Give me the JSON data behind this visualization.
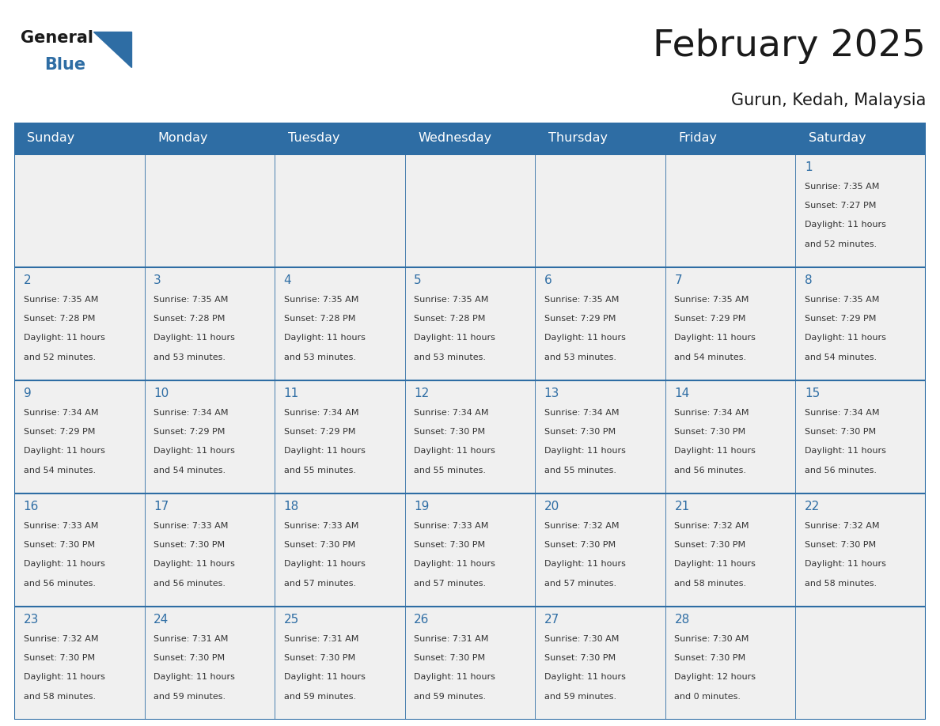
{
  "title": "February 2025",
  "subtitle": "Gurun, Kedah, Malaysia",
  "days_header": [
    "Sunday",
    "Monday",
    "Tuesday",
    "Wednesday",
    "Thursday",
    "Friday",
    "Saturday"
  ],
  "header_bg": "#2E6DA4",
  "header_text": "#FFFFFF",
  "cell_bg": "#F0F0F0",
  "border_color": "#2E6DA4",
  "day_number_color": "#2E6DA4",
  "cell_text_color": "#333333",
  "title_color": "#1a1a1a",
  "calendar_data": [
    [
      null,
      null,
      null,
      null,
      null,
      null,
      {
        "day": 1,
        "sunrise": "7:35 AM",
        "sunset": "7:27 PM",
        "daylight_line1": "Daylight: 11 hours",
        "daylight_line2": "and 52 minutes."
      }
    ],
    [
      {
        "day": 2,
        "sunrise": "7:35 AM",
        "sunset": "7:28 PM",
        "daylight_line1": "Daylight: 11 hours",
        "daylight_line2": "and 52 minutes."
      },
      {
        "day": 3,
        "sunrise": "7:35 AM",
        "sunset": "7:28 PM",
        "daylight_line1": "Daylight: 11 hours",
        "daylight_line2": "and 53 minutes."
      },
      {
        "day": 4,
        "sunrise": "7:35 AM",
        "sunset": "7:28 PM",
        "daylight_line1": "Daylight: 11 hours",
        "daylight_line2": "and 53 minutes."
      },
      {
        "day": 5,
        "sunrise": "7:35 AM",
        "sunset": "7:28 PM",
        "daylight_line1": "Daylight: 11 hours",
        "daylight_line2": "and 53 minutes."
      },
      {
        "day": 6,
        "sunrise": "7:35 AM",
        "sunset": "7:29 PM",
        "daylight_line1": "Daylight: 11 hours",
        "daylight_line2": "and 53 minutes."
      },
      {
        "day": 7,
        "sunrise": "7:35 AM",
        "sunset": "7:29 PM",
        "daylight_line1": "Daylight: 11 hours",
        "daylight_line2": "and 54 minutes."
      },
      {
        "day": 8,
        "sunrise": "7:35 AM",
        "sunset": "7:29 PM",
        "daylight_line1": "Daylight: 11 hours",
        "daylight_line2": "and 54 minutes."
      }
    ],
    [
      {
        "day": 9,
        "sunrise": "7:34 AM",
        "sunset": "7:29 PM",
        "daylight_line1": "Daylight: 11 hours",
        "daylight_line2": "and 54 minutes."
      },
      {
        "day": 10,
        "sunrise": "7:34 AM",
        "sunset": "7:29 PM",
        "daylight_line1": "Daylight: 11 hours",
        "daylight_line2": "and 54 minutes."
      },
      {
        "day": 11,
        "sunrise": "7:34 AM",
        "sunset": "7:29 PM",
        "daylight_line1": "Daylight: 11 hours",
        "daylight_line2": "and 55 minutes."
      },
      {
        "day": 12,
        "sunrise": "7:34 AM",
        "sunset": "7:30 PM",
        "daylight_line1": "Daylight: 11 hours",
        "daylight_line2": "and 55 minutes."
      },
      {
        "day": 13,
        "sunrise": "7:34 AM",
        "sunset": "7:30 PM",
        "daylight_line1": "Daylight: 11 hours",
        "daylight_line2": "and 55 minutes."
      },
      {
        "day": 14,
        "sunrise": "7:34 AM",
        "sunset": "7:30 PM",
        "daylight_line1": "Daylight: 11 hours",
        "daylight_line2": "and 56 minutes."
      },
      {
        "day": 15,
        "sunrise": "7:34 AM",
        "sunset": "7:30 PM",
        "daylight_line1": "Daylight: 11 hours",
        "daylight_line2": "and 56 minutes."
      }
    ],
    [
      {
        "day": 16,
        "sunrise": "7:33 AM",
        "sunset": "7:30 PM",
        "daylight_line1": "Daylight: 11 hours",
        "daylight_line2": "and 56 minutes."
      },
      {
        "day": 17,
        "sunrise": "7:33 AM",
        "sunset": "7:30 PM",
        "daylight_line1": "Daylight: 11 hours",
        "daylight_line2": "and 56 minutes."
      },
      {
        "day": 18,
        "sunrise": "7:33 AM",
        "sunset": "7:30 PM",
        "daylight_line1": "Daylight: 11 hours",
        "daylight_line2": "and 57 minutes."
      },
      {
        "day": 19,
        "sunrise": "7:33 AM",
        "sunset": "7:30 PM",
        "daylight_line1": "Daylight: 11 hours",
        "daylight_line2": "and 57 minutes."
      },
      {
        "day": 20,
        "sunrise": "7:32 AM",
        "sunset": "7:30 PM",
        "daylight_line1": "Daylight: 11 hours",
        "daylight_line2": "and 57 minutes."
      },
      {
        "day": 21,
        "sunrise": "7:32 AM",
        "sunset": "7:30 PM",
        "daylight_line1": "Daylight: 11 hours",
        "daylight_line2": "and 58 minutes."
      },
      {
        "day": 22,
        "sunrise": "7:32 AM",
        "sunset": "7:30 PM",
        "daylight_line1": "Daylight: 11 hours",
        "daylight_line2": "and 58 minutes."
      }
    ],
    [
      {
        "day": 23,
        "sunrise": "7:32 AM",
        "sunset": "7:30 PM",
        "daylight_line1": "Daylight: 11 hours",
        "daylight_line2": "and 58 minutes."
      },
      {
        "day": 24,
        "sunrise": "7:31 AM",
        "sunset": "7:30 PM",
        "daylight_line1": "Daylight: 11 hours",
        "daylight_line2": "and 59 minutes."
      },
      {
        "day": 25,
        "sunrise": "7:31 AM",
        "sunset": "7:30 PM",
        "daylight_line1": "Daylight: 11 hours",
        "daylight_line2": "and 59 minutes."
      },
      {
        "day": 26,
        "sunrise": "7:31 AM",
        "sunset": "7:30 PM",
        "daylight_line1": "Daylight: 11 hours",
        "daylight_line2": "and 59 minutes."
      },
      {
        "day": 27,
        "sunrise": "7:30 AM",
        "sunset": "7:30 PM",
        "daylight_line1": "Daylight: 11 hours",
        "daylight_line2": "and 59 minutes."
      },
      {
        "day": 28,
        "sunrise": "7:30 AM",
        "sunset": "7:30 PM",
        "daylight_line1": "Daylight: 12 hours",
        "daylight_line2": "and 0 minutes."
      },
      null
    ]
  ]
}
